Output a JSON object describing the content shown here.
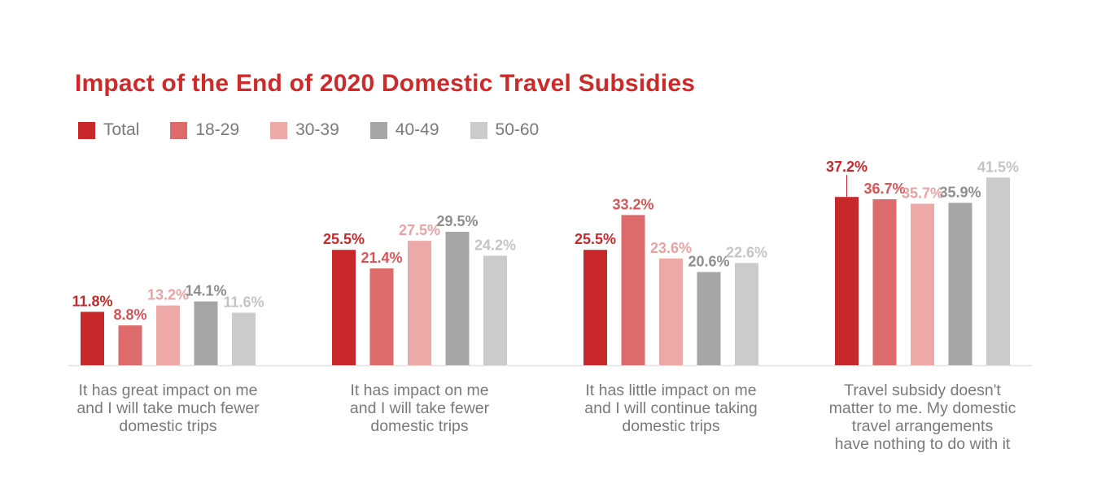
{
  "chart_data": {
    "type": "bar",
    "title": "Impact of the End of 2020 Domestic Travel Subsidies",
    "categories": [
      [
        "It has great impact on me",
        "and I will take much fewer",
        "domestic trips"
      ],
      [
        "It has impact on me",
        "and I will take fewer",
        "domestic trips"
      ],
      [
        "It has little impact on me",
        "and I will continue taking",
        "domestic trips"
      ],
      [
        "Travel subsidy doesn't",
        "matter to me. My domestic",
        "travel arrangements",
        "have nothing to do with it"
      ]
    ],
    "series": [
      {
        "name": "Total",
        "color": "#c9282a",
        "label_color": "#c9282a",
        "values": [
          11.8,
          25.5,
          25.5,
          37.2
        ],
        "labels": [
          "11.8%",
          "25.5%",
          "25.5%",
          "37.2%"
        ]
      },
      {
        "name": "18-29",
        "color": "#de6b6b",
        "label_color": "#d95555",
        "values": [
          8.8,
          21.4,
          33.2,
          36.7
        ],
        "labels": [
          "8.8%",
          "21.4%",
          "33.2%",
          "36.7%"
        ]
      },
      {
        "name": "30-39",
        "color": "#eda9a8",
        "label_color": "#eba2a2",
        "values": [
          13.2,
          27.5,
          23.6,
          35.7
        ],
        "labels": [
          "13.2%",
          "27.5%",
          "23.6%",
          "35.7%"
        ]
      },
      {
        "name": "40-49",
        "color": "#a7a6a7",
        "label_color": "#8e8e8e",
        "values": [
          14.1,
          29.5,
          20.6,
          35.9
        ],
        "labels": [
          "14.1%",
          "29.5%",
          "20.6%",
          "35.9%"
        ]
      },
      {
        "name": "50-60",
        "color": "#cbcbcb",
        "label_color": "#c4c4c4",
        "values": [
          11.6,
          24.2,
          22.6,
          41.5
        ],
        "labels": [
          "11.6%",
          "24.2%",
          "22.6%",
          "41.5%"
        ]
      }
    ],
    "ylim": [
      0,
      45
    ],
    "grid": false,
    "legend_position": "top-left"
  }
}
